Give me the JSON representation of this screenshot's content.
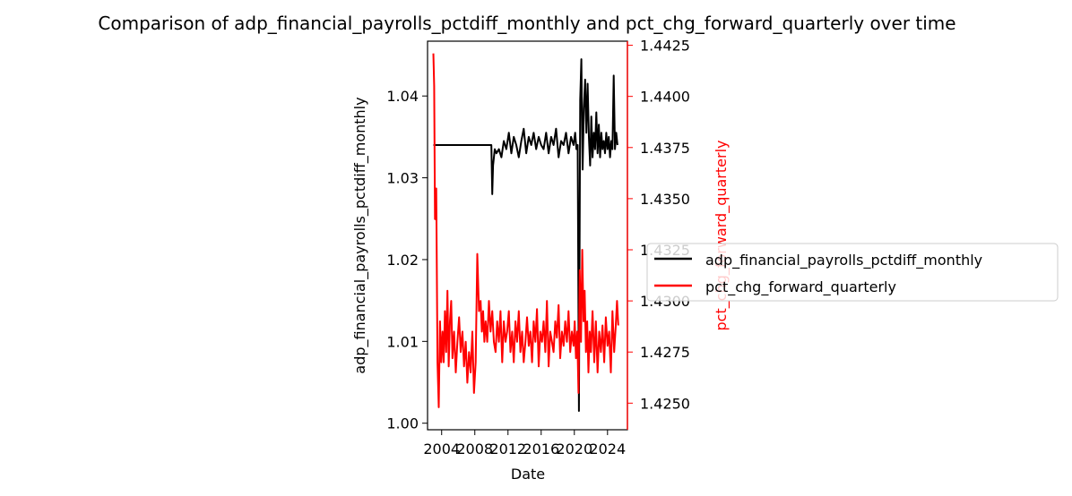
{
  "chart_data": {
    "type": "line",
    "title": "Comparison of adp_financial_payrolls_pctdiff_monthly and pct_chg_forward_quarterly over time",
    "xlabel": "Date",
    "ylabel_left": "adp_financial_payrolls_pctdiff_monthly",
    "ylabel_right": "pct_chg_forward_quarterly",
    "xlim": [
      2002.3,
      2026.4
    ],
    "ylim_left": [
      0.9992,
      1.0467
    ],
    "ylim_right": [
      1.4237,
      1.4427
    ],
    "x_ticks": [
      2004,
      2008,
      2012,
      2016,
      2020,
      2024
    ],
    "x_tick_labels": [
      "2004",
      "2008",
      "2012",
      "2016",
      "2020",
      "2024"
    ],
    "y_left_ticks": [
      1.0,
      1.01,
      1.02,
      1.03,
      1.04
    ],
    "y_left_tick_labels": [
      "1.00",
      "1.01",
      "1.02",
      "1.03",
      "1.04"
    ],
    "y_right_ticks": [
      1.425,
      1.4275,
      1.43,
      1.4325,
      1.435,
      1.4375,
      1.44,
      1.4425
    ],
    "y_right_tick_labels": [
      "1.4250",
      "1.4275",
      "1.4300",
      "1.4325",
      "1.4350",
      "1.4375",
      "1.4400",
      "1.4425"
    ],
    "grid": false,
    "legend_position": "right",
    "series": [
      {
        "name": "adp_financial_payrolls_pctdiff_monthly",
        "color": "#000000",
        "axis": "left",
        "x": [
          2003.0,
          2010.0,
          2010.1,
          2010.2,
          2010.4,
          2010.6,
          2010.9,
          2011.2,
          2011.5,
          2011.8,
          2012.1,
          2012.4,
          2012.7,
          2013.0,
          2013.3,
          2013.6,
          2013.9,
          2014.2,
          2014.5,
          2014.8,
          2015.1,
          2015.4,
          2015.7,
          2016.0,
          2016.3,
          2016.6,
          2016.9,
          2017.2,
          2017.5,
          2017.8,
          2018.1,
          2018.4,
          2018.7,
          2019.0,
          2019.3,
          2019.6,
          2019.9,
          2020.1,
          2020.25,
          2020.4,
          2020.55,
          2020.7,
          2020.85,
          2021.0,
          2021.15,
          2021.3,
          2021.45,
          2021.6,
          2021.75,
          2021.9,
          2022.05,
          2022.2,
          2022.35,
          2022.5,
          2022.65,
          2022.8,
          2022.95,
          2023.1,
          2023.25,
          2023.4,
          2023.55,
          2023.7,
          2023.85,
          2024.0,
          2024.15,
          2024.3,
          2024.45,
          2024.6,
          2024.75,
          2024.9,
          2025.05,
          2025.2
        ],
        "values": [
          1.034,
          1.034,
          1.028,
          1.0315,
          1.0335,
          1.033,
          1.0335,
          1.0325,
          1.0345,
          1.0335,
          1.0355,
          1.033,
          1.035,
          1.034,
          1.0325,
          1.0345,
          1.036,
          1.033,
          1.035,
          1.034,
          1.0355,
          1.0335,
          1.035,
          1.034,
          1.0335,
          1.0355,
          1.033,
          1.035,
          1.034,
          1.036,
          1.0325,
          1.0345,
          1.034,
          1.0355,
          1.033,
          1.035,
          1.034,
          1.0355,
          1.0335,
          1.034,
          1.0015,
          1.0395,
          1.0445,
          1.031,
          1.0385,
          1.042,
          1.0355,
          1.0415,
          1.035,
          1.0315,
          1.0375,
          1.0325,
          1.0355,
          1.0335,
          1.038,
          1.033,
          1.0365,
          1.0325,
          1.0355,
          1.0335,
          1.0345,
          1.033,
          1.0355,
          1.0335,
          1.035,
          1.0325,
          1.0345,
          1.0335,
          1.0425,
          1.0335,
          1.0355,
          1.034
        ]
      },
      {
        "name": "pct_chg_forward_quarterly",
        "color": "#ff0000",
        "axis": "right",
        "x": [
          2003.0,
          2003.1,
          2003.2,
          2003.35,
          2003.5,
          2003.65,
          2003.8,
          2003.95,
          2004.1,
          2004.25,
          2004.4,
          2004.55,
          2004.7,
          2004.85,
          2005.0,
          2005.15,
          2005.3,
          2005.5,
          2005.7,
          2005.9,
          2006.1,
          2006.3,
          2006.5,
          2006.7,
          2006.9,
          2007.1,
          2007.3,
          2007.5,
          2007.7,
          2007.9,
          2008.1,
          2008.3,
          2008.5,
          2008.7,
          2008.85,
          2009.0,
          2009.15,
          2009.3,
          2009.5,
          2009.7,
          2009.9,
          2010.1,
          2010.3,
          2010.5,
          2010.7,
          2010.9,
          2011.1,
          2011.3,
          2011.5,
          2011.7,
          2011.9,
          2012.1,
          2012.3,
          2012.5,
          2012.7,
          2012.9,
          2013.1,
          2013.3,
          2013.5,
          2013.7,
          2013.9,
          2014.1,
          2014.3,
          2014.5,
          2014.7,
          2014.9,
          2015.1,
          2015.3,
          2015.5,
          2015.7,
          2015.9,
          2016.1,
          2016.3,
          2016.5,
          2016.7,
          2016.9,
          2017.1,
          2017.3,
          2017.5,
          2017.7,
          2017.9,
          2018.1,
          2018.3,
          2018.5,
          2018.7,
          2018.9,
          2019.1,
          2019.3,
          2019.5,
          2019.7,
          2019.9,
          2020.05,
          2020.2,
          2020.35,
          2020.5,
          2020.65,
          2020.8,
          2020.95,
          2021.1,
          2021.25,
          2021.4,
          2021.55,
          2021.7,
          2021.85,
          2022.0,
          2022.2,
          2022.4,
          2022.6,
          2022.8,
          2023.0,
          2023.2,
          2023.4,
          2023.6,
          2023.8,
          2024.0,
          2024.2,
          2024.4,
          2024.6,
          2024.8,
          2025.0,
          2025.15,
          2025.3
        ],
        "values": [
          1.4421,
          1.4405,
          1.434,
          1.4355,
          1.427,
          1.4248,
          1.429,
          1.427,
          1.4285,
          1.427,
          1.4295,
          1.4275,
          1.4305,
          1.4268,
          1.429,
          1.43,
          1.4272,
          1.4285,
          1.4265,
          1.428,
          1.4292,
          1.4275,
          1.4285,
          1.4268,
          1.428,
          1.426,
          1.4275,
          1.4265,
          1.4285,
          1.4255,
          1.427,
          1.4323,
          1.4295,
          1.43,
          1.4285,
          1.4295,
          1.428,
          1.429,
          1.428,
          1.43,
          1.4285,
          1.4295,
          1.428,
          1.4275,
          1.429,
          1.428,
          1.4295,
          1.427,
          1.429,
          1.428,
          1.4285,
          1.4295,
          1.4275,
          1.4285,
          1.427,
          1.429,
          1.428,
          1.4295,
          1.4275,
          1.4285,
          1.427,
          1.428,
          1.4292,
          1.4278,
          1.4285,
          1.427,
          1.429,
          1.428,
          1.4296,
          1.4268,
          1.4285,
          1.428,
          1.429,
          1.4275,
          1.43,
          1.4268,
          1.4285,
          1.428,
          1.4275,
          1.429,
          1.4282,
          1.4298,
          1.4272,
          1.4285,
          1.4278,
          1.429,
          1.428,
          1.4295,
          1.4275,
          1.4285,
          1.4278,
          1.429,
          1.4272,
          1.4285,
          1.4255,
          1.4315,
          1.428,
          1.4325,
          1.429,
          1.4305,
          1.4275,
          1.429,
          1.4265,
          1.4285,
          1.4275,
          1.4295,
          1.427,
          1.429,
          1.4265,
          1.4285,
          1.4275,
          1.4288,
          1.427,
          1.4292,
          1.4278,
          1.4285,
          1.4265,
          1.4295,
          1.4275,
          1.4288,
          1.43,
          1.4288
        ]
      }
    ]
  }
}
